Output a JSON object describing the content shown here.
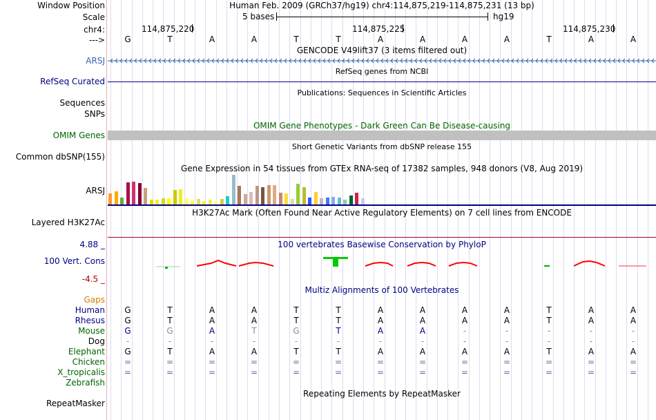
{
  "header": {
    "window_label": "Window Position",
    "window_value": "Human Feb. 2009 (GRCh37/hg19)   chr4:114,875,219-114,875,231 (13 bp)",
    "scale_label": "Scale",
    "scale_text": "5 bases",
    "scale_assembly": "hg19",
    "chr_label": "chr4:",
    "arrow_label": "--->",
    "ticks": [
      "114,875,220",
      "114,875,225",
      "114,875,230"
    ],
    "bases": [
      "G",
      "T",
      "A",
      "A",
      "T",
      "T",
      "A",
      "A",
      "A",
      "A",
      "T",
      "A",
      "A"
    ]
  },
  "tracks": {
    "gencode_title": "GENCODE V49lift37 (3 items filtered out)",
    "arsj_label": "ARSJ",
    "refseq_title": "RefSeq genes from NCBI",
    "refseq_label": "RefSeq Curated",
    "publications_title": "Publications: Sequences in Scientific Articles",
    "sequences_label": "Sequences",
    "snps_label": "SNPs",
    "omim_title": "OMIM Gene Phenotypes - Dark Green Can Be Disease-causing",
    "omim_label": "OMIM Genes",
    "dbsnp_title": "Short Genetic Variants from dbSNP release 155",
    "dbsnp_label": "Common dbSNP(155)",
    "gtex_title": "Gene Expression in 54 tissues from GTEx RNA-seq of 17382 samples, 948 donors (V8, Aug 2019)",
    "gtex_label": "ARSJ",
    "h3k27ac_title": "H3K27Ac Mark (Often Found Near Active Regulatory Elements) on 7 cell lines from ENCODE",
    "h3k27ac_label": "Layered H3K27Ac",
    "phylop_title": "100 vertebrates Basewise Conservation by PhyloP",
    "phylop_max": "4.88 _",
    "phylop_label": "100 Vert. Cons",
    "phylop_min": "-4.5 _",
    "multiz_title": "Multiz Alignments of 100 Vertebrates",
    "gaps_label": "Gaps",
    "repeat_title": "Repeating Elements by RepeatMasker",
    "repeat_label": "RepeatMasker"
  },
  "alignment": [
    {
      "species": "Human",
      "color": "#000080",
      "seq": [
        "G",
        "T",
        "A",
        "A",
        "T",
        "T",
        "A",
        "A",
        "A",
        "A",
        "T",
        "A",
        "A"
      ]
    },
    {
      "species": "Rhesus",
      "color": "#000080",
      "seq": [
        "G",
        "T",
        "A",
        "A",
        "T",
        "T",
        "A",
        "A",
        "A",
        "A",
        "T",
        "A",
        "A"
      ]
    },
    {
      "species": "Mouse",
      "color": "#006400",
      "seq": [
        "G",
        "G",
        "A",
        "T",
        "G",
        "T",
        "A",
        "A",
        "-",
        "-",
        "-",
        "-",
        "-"
      ]
    },
    {
      "species": "Dog",
      "color": "#000000",
      "seq": [
        "-",
        "-",
        "-",
        "-",
        "-",
        "-",
        "-",
        "-",
        "-",
        "-",
        "-",
        "-",
        "-"
      ]
    },
    {
      "species": "Elephant",
      "color": "#006400",
      "seq": [
        "G",
        "T",
        "A",
        "A",
        "T",
        "T",
        "A",
        "A",
        "A",
        "A",
        "T",
        "A",
        "A"
      ]
    },
    {
      "species": "Chicken",
      "color": "#006400",
      "seq": [
        "=",
        "=",
        "=",
        "=",
        "=",
        "=",
        "=",
        "=",
        "=",
        "=",
        "=",
        "=",
        "="
      ]
    },
    {
      "species": "X_tropicalis",
      "color": "#006400",
      "seq": [
        "=",
        "=",
        "=",
        "=",
        "=",
        "=",
        "=",
        "=",
        "=",
        "=",
        "=",
        "=",
        "="
      ]
    },
    {
      "species": "Zebrafish",
      "color": "#006400",
      "seq": [
        "",
        "",
        "",
        "",
        "",
        "",
        "",
        "",
        "",
        "",
        "",
        "",
        ""
      ]
    }
  ],
  "gtex_chart": {
    "type": "bar",
    "values": [
      16,
      19,
      10,
      32,
      33,
      31,
      24,
      7,
      7,
      9,
      9,
      21,
      22,
      9,
      6,
      8,
      5,
      7,
      5,
      8,
      12,
      43,
      27,
      15,
      18,
      27,
      25,
      28,
      28,
      17,
      16,
      8,
      30,
      25,
      10,
      18,
      9,
      10,
      11,
      10,
      7,
      13,
      17,
      9
    ],
    "colors": [
      "#ff9933",
      "#ffaa00",
      "#66aa44",
      "#aa1144",
      "#cc3377",
      "#880033",
      "#c8a080",
      "#dddd00",
      "#eeee33",
      "#ccdd22",
      "#ffff00",
      "#cccc00",
      "#eeee22",
      "#ffff66",
      "#ffff44",
      "#dddd66",
      "#ffee33",
      "#eeee55",
      "#ffff88",
      "#ddcc44",
      "#22cccc",
      "#99bbcc",
      "#aa7755",
      "#ccaa99",
      "#ddbbbb",
      "#bb9988",
      "#775544",
      "#cc9966",
      "#ddaa88",
      "#cc8866",
      "#ffdd33",
      "#ddddaa",
      "#99cc33",
      "#bbbb33",
      "#3355ff",
      "#ffcc33",
      "#bbbbbb",
      "#4477ff",
      "#88aaee",
      "#66bbdd",
      "#99cc99",
      "#006633",
      "#cc2244",
      "#ccccee"
    ]
  },
  "colors": {
    "arsj": "#3366aa",
    "refseq": "#000080",
    "omim": "#006400",
    "gaps": "#d08000",
    "phylop_max": "#000080",
    "phylop_min": "#aa0000",
    "h3k27ac_line": "#990033"
  }
}
